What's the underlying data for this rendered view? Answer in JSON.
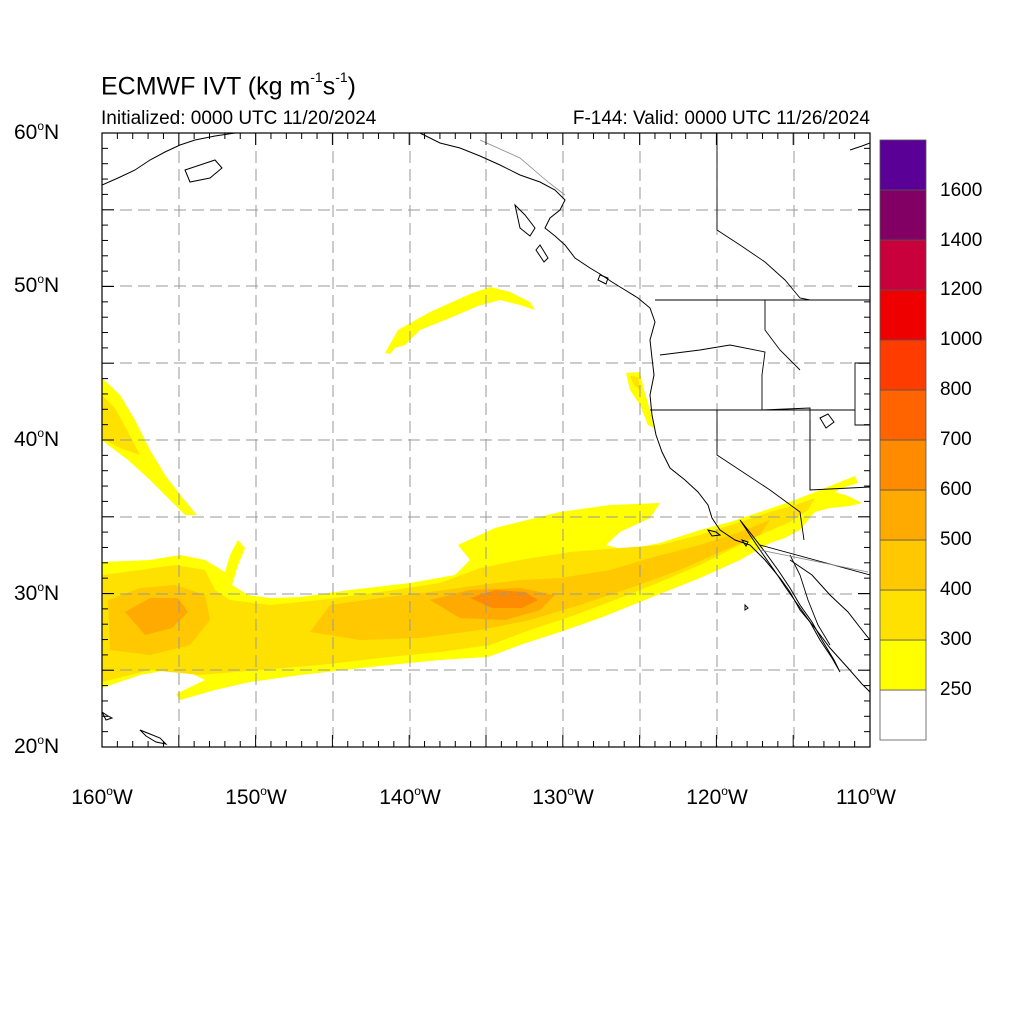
{
  "title": {
    "model": "ECMWF IVT",
    "units_prefix": "(kg m",
    "units_exp1": "-1",
    "units_mid": "s",
    "units_exp2": "-1",
    "units_suffix": ")",
    "initialized": "Initialized: 0000 UTC 11/20/2024",
    "valid": "F-144: Valid: 0000 UTC 11/26/2024"
  },
  "map": {
    "projection": "cylindrical equidistant",
    "lon_range": [
      -160,
      -110
    ],
    "lat_range": [
      20,
      60
    ],
    "grid": "dashed every 5 degrees",
    "lat_labels": [
      {
        "deg": "60",
        "hemi": "N"
      },
      {
        "deg": "50",
        "hemi": "N"
      },
      {
        "deg": "40",
        "hemi": "N"
      },
      {
        "deg": "30",
        "hemi": "N"
      },
      {
        "deg": "20",
        "hemi": "N"
      }
    ],
    "lon_labels": [
      {
        "deg": "160",
        "hemi": "W"
      },
      {
        "deg": "150",
        "hemi": "W"
      },
      {
        "deg": "140",
        "hemi": "W"
      },
      {
        "deg": "130",
        "hemi": "W"
      },
      {
        "deg": "120",
        "hemi": "W"
      },
      {
        "deg": "110",
        "hemi": "W"
      }
    ]
  },
  "colorbar": {
    "levels": [
      "250",
      "300",
      "400",
      "500",
      "600",
      "700",
      "800",
      "1000",
      "1200",
      "1400",
      "1600"
    ],
    "colors": [
      "#ffffff",
      "#ffff00",
      "#ffe100",
      "#ffc800",
      "#ffaa00",
      "#ff8c00",
      "#ff6400",
      "#ff3c00",
      "#ee0000",
      "#c8003c",
      "#820064",
      "#5a0096"
    ]
  }
}
